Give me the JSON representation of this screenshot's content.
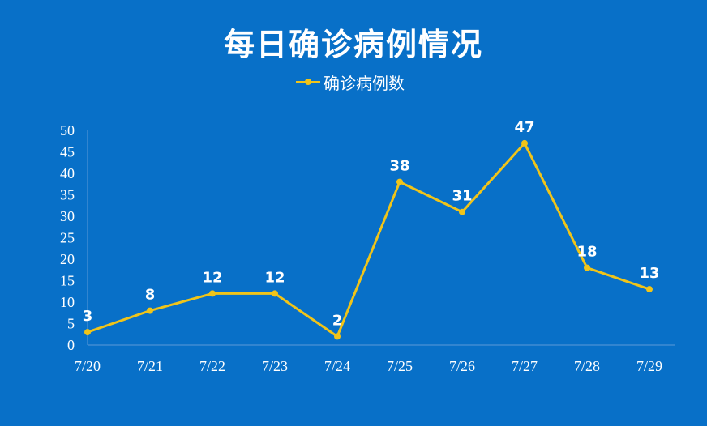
{
  "chart_data": {
    "type": "line",
    "title": "每日确诊病例情况",
    "categories": [
      "7/20",
      "7/21",
      "7/22",
      "7/23",
      "7/24",
      "7/25",
      "7/26",
      "7/27",
      "7/28",
      "7/29"
    ],
    "series": [
      {
        "name": "确诊病例数",
        "values": [
          3,
          8,
          12,
          12,
          2,
          38,
          31,
          47,
          18,
          13
        ]
      }
    ],
    "yticks": [
      0,
      5,
      10,
      15,
      20,
      25,
      30,
      35,
      40,
      45,
      50
    ],
    "ylim": [
      0,
      50
    ],
    "xlabel": "",
    "ylabel": "",
    "legend": "top-center",
    "grid": false,
    "data_labels": true
  },
  "colors": {
    "background": "#0870c8",
    "series": "#f0c419",
    "text": "#ffffff"
  }
}
